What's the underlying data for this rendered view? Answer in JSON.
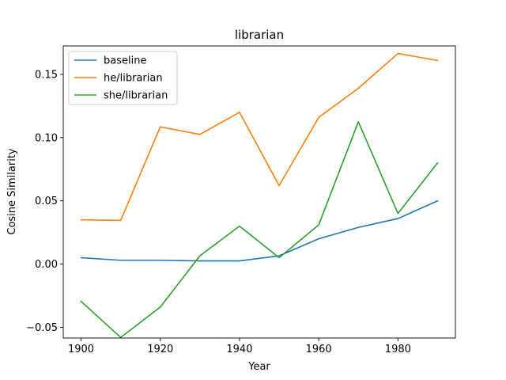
{
  "chart_data": {
    "type": "line",
    "title": "librarian",
    "xlabel": "Year",
    "ylabel": "Cosine Similarity",
    "x": [
      1900,
      1910,
      1920,
      1930,
      1940,
      1950,
      1960,
      1970,
      1980,
      1990
    ],
    "xlim": [
      1895.5,
      1994.5
    ],
    "ylim": [
      -0.0585,
      0.1725
    ],
    "xticks": [
      1900,
      1920,
      1940,
      1960,
      1980
    ],
    "yticks": [
      -0.05,
      0.0,
      0.05,
      0.1,
      0.15
    ],
    "xtick_labels": [
      "1900",
      "1920",
      "1940",
      "1960",
      "1980"
    ],
    "ytick_labels": [
      "−0.05",
      "0.00",
      "0.05",
      "0.10",
      "0.15"
    ],
    "grid": false,
    "legend_position": "top-left",
    "series": [
      {
        "name": "baseline",
        "color": "#1f77b4",
        "values": [
          0.005,
          0.003,
          0.003,
          0.0025,
          0.0025,
          0.0065,
          0.02,
          0.029,
          0.036,
          0.05
        ]
      },
      {
        "name": "he/librarian",
        "color": "#ff7f0e",
        "values": [
          0.035,
          0.0345,
          0.1085,
          0.1025,
          0.12,
          0.062,
          0.116,
          0.139,
          0.1665,
          0.161
        ]
      },
      {
        "name": "she/librarian",
        "color": "#2ca02c",
        "values": [
          -0.0295,
          -0.058,
          -0.034,
          0.0065,
          0.03,
          0.005,
          0.031,
          0.1125,
          0.04,
          0.08
        ]
      }
    ]
  }
}
